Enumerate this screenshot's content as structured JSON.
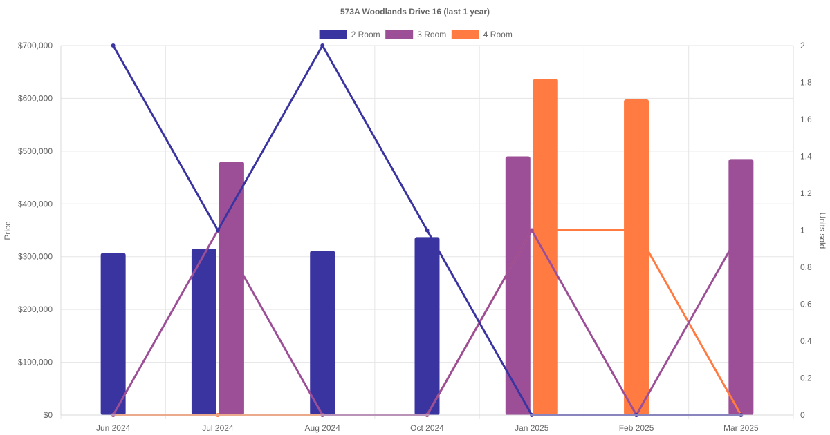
{
  "chart_data": {
    "type": "bar",
    "title": "573A Woodlands Drive 16 (last 1 year)",
    "categories": [
      "Jun 2024",
      "Jul 2024",
      "Aug 2024",
      "Oct 2024",
      "Jan 2025",
      "Feb 2025",
      "Mar 2025"
    ],
    "ylabel": "Price",
    "y2label": "Units sold",
    "ylim": [
      0,
      700000
    ],
    "y2lim": [
      0,
      2
    ],
    "yticks": [
      "$0",
      "$100,000",
      "$200,000",
      "$300,000",
      "$400,000",
      "$500,000",
      "$600,000",
      "$700,000"
    ],
    "y2ticks": [
      "0",
      "0.2",
      "0.4",
      "0.6",
      "0.8",
      "1",
      "1.2",
      "1.4",
      "1.6",
      "1.8",
      "2"
    ],
    "grid": true,
    "legend_position": "top",
    "series": [
      {
        "name": "2 Room",
        "color": "#3a34a1",
        "price": [
          307000,
          315000,
          311000,
          337000,
          null,
          null,
          null
        ],
        "units_sold": [
          2,
          1,
          2,
          1,
          0,
          0,
          0
        ]
      },
      {
        "name": "3 Room",
        "color": "#9c4f96",
        "price": [
          null,
          480000,
          null,
          null,
          490000,
          null,
          485000
        ],
        "units_sold": [
          0,
          1,
          0,
          0,
          1,
          0,
          1
        ]
      },
      {
        "name": "4 Room",
        "color": "#ff7b41",
        "price": [
          null,
          null,
          null,
          null,
          637000,
          598000,
          null
        ],
        "units_sold": [
          0,
          0,
          0,
          0,
          1,
          1,
          0
        ]
      }
    ]
  }
}
